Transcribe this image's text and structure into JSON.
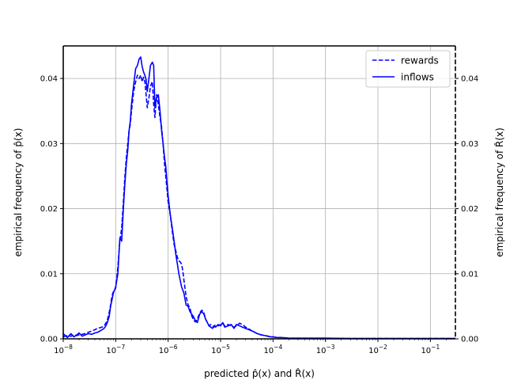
{
  "chart_data": {
    "type": "line",
    "x_scale": "log",
    "xlim": [
      1e-08,
      0.3
    ],
    "ylim": [
      0,
      0.045
    ],
    "grid": true,
    "legend_position": "top-right",
    "xlabel": "predicted p̂(x) and R̂(x)",
    "ylabel_left": "empirical frequency of p̂(x)",
    "ylabel_right": "empirical frequency of R̂(x)",
    "x_ticks": [
      {
        "value": 1e-08,
        "base": "10",
        "exp": "−8"
      },
      {
        "value": 1e-07,
        "base": "10",
        "exp": "−7"
      },
      {
        "value": 1e-06,
        "base": "10",
        "exp": "−6"
      },
      {
        "value": 1e-05,
        "base": "10",
        "exp": "−5"
      },
      {
        "value": 0.0001,
        "base": "10",
        "exp": "−4"
      },
      {
        "value": 0.001,
        "base": "10",
        "exp": "−3"
      },
      {
        "value": 0.01,
        "base": "10",
        "exp": "−2"
      },
      {
        "value": 0.1,
        "base": "10",
        "exp": "−1"
      }
    ],
    "y_ticks": [
      {
        "value": 0.0,
        "label": "0.00"
      },
      {
        "value": 0.01,
        "label": "0.01"
      },
      {
        "value": 0.02,
        "label": "0.02"
      },
      {
        "value": 0.03,
        "label": "0.03"
      },
      {
        "value": 0.04,
        "label": "0.04"
      }
    ],
    "series": [
      {
        "name": "rewards",
        "style": "dashed",
        "color": "#0000ff",
        "x": [
          1e-08,
          1.2e-08,
          1.4e-08,
          1.6e-08,
          1.8e-08,
          2e-08,
          2.3e-08,
          2.6e-08,
          3e-08,
          3.5e-08,
          4e-08,
          4.5e-08,
          5e-08,
          5.5e-08,
          6e-08,
          6.5e-08,
          7e-08,
          7.5e-08,
          8e-08,
          8.5e-08,
          9e-08,
          1e-07,
          1.1e-07,
          1.2e-07,
          1.3e-07,
          1.4e-07,
          1.5e-07,
          1.6e-07,
          1.7e-07,
          1.8e-07,
          1.9e-07,
          2e-07,
          2.2e-07,
          2.4e-07,
          2.6e-07,
          2.8e-07,
          3e-07,
          3.2e-07,
          3.4e-07,
          3.6e-07,
          3.8e-07,
          4e-07,
          4.3e-07,
          4.6e-07,
          5e-07,
          5.3e-07,
          5.6e-07,
          6e-07,
          6.5e-07,
          7e-07,
          7.5e-07,
          8e-07,
          8.5e-07,
          9e-07,
          9.5e-07,
          1e-06,
          1.1e-06,
          1.2e-06,
          1.3e-06,
          1.4e-06,
          1.5e-06,
          1.6e-06,
          1.7e-06,
          1.8e-06,
          1.9e-06,
          2e-06,
          2.2e-06,
          2.4e-06,
          2.6e-06,
          2.8e-06,
          3e-06,
          3.3e-06,
          3.6e-06,
          4e-06,
          4.4e-06,
          4.8e-06,
          5.2e-06,
          5.6e-06,
          6e-06,
          6.5e-06,
          7e-06,
          7.5e-06,
          8e-06,
          9e-06,
          1e-05,
          1.1e-05,
          1.2e-05,
          1.4e-05,
          1.6e-05,
          1.8e-05,
          2e-05,
          2.3e-05,
          2.6e-05,
          3e-05,
          3.5e-05,
          4e-05,
          4.5e-05,
          5e-05,
          6e-05,
          7e-05,
          8e-05,
          9e-05,
          0.0001,
          0.00012,
          0.00015,
          0.0002,
          0.0003,
          0.0005,
          0.001,
          0.003,
          0.01,
          0.1,
          0.3
        ],
        "y": [
          0.0003,
          0.0005,
          0.0004,
          0.0006,
          0.0005,
          0.0006,
          0.0007,
          0.0008,
          0.001,
          0.0012,
          0.0014,
          0.0016,
          0.0017,
          0.0018,
          0.002,
          0.0024,
          0.003,
          0.004,
          0.0052,
          0.0066,
          0.0072,
          0.0078,
          0.011,
          0.015,
          0.017,
          0.021,
          0.025,
          0.028,
          0.03,
          0.032,
          0.033,
          0.035,
          0.038,
          0.0395,
          0.0405,
          0.04,
          0.0405,
          0.0395,
          0.0402,
          0.0395,
          0.0375,
          0.0355,
          0.037,
          0.0388,
          0.0395,
          0.036,
          0.034,
          0.0375,
          0.036,
          0.034,
          0.0325,
          0.03,
          0.027,
          0.025,
          0.023,
          0.021,
          0.019,
          0.0165,
          0.0145,
          0.0135,
          0.0125,
          0.012,
          0.0118,
          0.0115,
          0.0105,
          0.009,
          0.0065,
          0.0052,
          0.0048,
          0.0036,
          0.003,
          0.0026,
          0.003,
          0.004,
          0.0044,
          0.004,
          0.003,
          0.0025,
          0.002,
          0.0022,
          0.002,
          0.0018,
          0.0022,
          0.002,
          0.0022,
          0.0024,
          0.002,
          0.0022,
          0.002,
          0.0018,
          0.002,
          0.0024,
          0.0022,
          0.0018,
          0.0015,
          0.0012,
          0.001,
          0.0008,
          0.0006,
          0.0005,
          0.0004,
          0.0003,
          0.0003,
          0.0002,
          0.0002,
          0.0001,
          0.0001,
          0.0001,
          0.0001,
          5e-05,
          5e-05,
          5e-05,
          5e-05
        ]
      },
      {
        "name": "inflows",
        "style": "solid",
        "color": "#0000ff",
        "x": [
          1e-08,
          1.2e-08,
          1.4e-08,
          1.6e-08,
          1.8e-08,
          2e-08,
          2.3e-08,
          2.6e-08,
          3e-08,
          3.5e-08,
          4e-08,
          4.5e-08,
          5e-08,
          5.5e-08,
          6e-08,
          6.5e-08,
          7e-08,
          7.5e-08,
          8e-08,
          8.5e-08,
          9e-08,
          1e-07,
          1.1e-07,
          1.2e-07,
          1.3e-07,
          1.4e-07,
          1.5e-07,
          1.6e-07,
          1.7e-07,
          1.8e-07,
          1.9e-07,
          2e-07,
          2.2e-07,
          2.4e-07,
          2.6e-07,
          2.8e-07,
          3e-07,
          3.2e-07,
          3.4e-07,
          3.6e-07,
          3.8e-07,
          4e-07,
          4.3e-07,
          4.6e-07,
          5e-07,
          5.3e-07,
          5.6e-07,
          6e-07,
          6.5e-07,
          7e-07,
          7.5e-07,
          8e-07,
          8.5e-07,
          9e-07,
          9.5e-07,
          1e-06,
          1.1e-06,
          1.2e-06,
          1.3e-06,
          1.4e-06,
          1.5e-06,
          1.6e-06,
          1.7e-06,
          1.8e-06,
          1.9e-06,
          2e-06,
          2.2e-06,
          2.4e-06,
          2.6e-06,
          2.8e-06,
          3e-06,
          3.3e-06,
          3.6e-06,
          4e-06,
          4.4e-06,
          4.8e-06,
          5.2e-06,
          5.6e-06,
          6e-06,
          6.5e-06,
          7e-06,
          7.5e-06,
          8e-06,
          9e-06,
          1e-05,
          1.1e-05,
          1.2e-05,
          1.4e-05,
          1.6e-05,
          1.8e-05,
          2e-05,
          2.3e-05,
          2.6e-05,
          3e-05,
          3.5e-05,
          4e-05,
          4.5e-05,
          5e-05,
          6e-05,
          7e-05,
          8e-05,
          9e-05,
          0.0001,
          0.00012,
          0.00015,
          0.0002,
          0.0003,
          0.0005,
          0.001,
          0.003,
          0.01,
          0.1,
          0.3
        ],
        "y": [
          0.0008,
          0.0002,
          0.0008,
          0.0003,
          0.0006,
          0.0009,
          0.0004,
          0.0006,
          0.0008,
          0.0007,
          0.0009,
          0.001,
          0.0012,
          0.0014,
          0.0016,
          0.002,
          0.0026,
          0.0034,
          0.005,
          0.006,
          0.007,
          0.008,
          0.01,
          0.0155,
          0.015,
          0.02,
          0.024,
          0.027,
          0.029,
          0.032,
          0.0335,
          0.036,
          0.039,
          0.0415,
          0.042,
          0.043,
          0.0433,
          0.0418,
          0.041,
          0.0405,
          0.0398,
          0.038,
          0.04,
          0.042,
          0.0425,
          0.042,
          0.0355,
          0.037,
          0.0375,
          0.035,
          0.032,
          0.03,
          0.028,
          0.0265,
          0.024,
          0.022,
          0.019,
          0.017,
          0.015,
          0.013,
          0.0115,
          0.01,
          0.009,
          0.008,
          0.0075,
          0.007,
          0.0052,
          0.005,
          0.0042,
          0.0038,
          0.0035,
          0.0028,
          0.0025,
          0.0038,
          0.0042,
          0.0038,
          0.003,
          0.0025,
          0.002,
          0.0018,
          0.0016,
          0.002,
          0.0018,
          0.0022,
          0.002,
          0.0025,
          0.0018,
          0.002,
          0.0022,
          0.0016,
          0.0022,
          0.002,
          0.0018,
          0.0016,
          0.0014,
          0.0012,
          0.001,
          0.0008,
          0.0006,
          0.0005,
          0.0004,
          0.0003,
          0.0003,
          0.0002,
          0.0002,
          0.0001,
          0.0001,
          0.0001,
          0.0001,
          5e-05,
          5e-05,
          5e-05,
          5e-05
        ]
      }
    ]
  }
}
